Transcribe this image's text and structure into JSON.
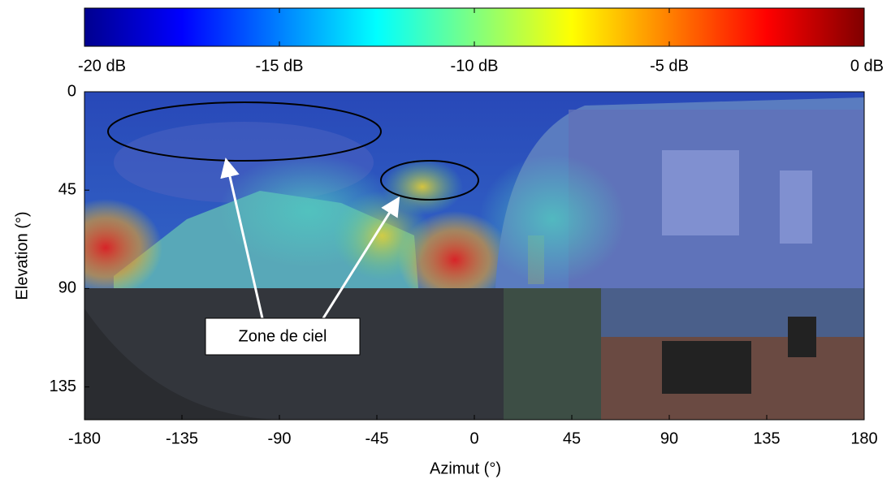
{
  "chart_data": {
    "type": "heatmap",
    "xlabel": "Azimut (°)",
    "ylabel": "Elevation (°)",
    "xlim": [
      -180,
      180
    ],
    "xticks": [
      -180,
      -135,
      -90,
      -45,
      0,
      45,
      90,
      135,
      180
    ],
    "ylim": [
      0,
      150
    ],
    "yticks": [
      0,
      45,
      90,
      135
    ],
    "y_reversed": true,
    "colorbar": {
      "colormap": "jet",
      "clim": [
        -20,
        0
      ],
      "ticks": [
        {
          "value": -20,
          "label": "-20 dB"
        },
        {
          "value": -15,
          "label": "-15 dB"
        },
        {
          "value": -10,
          "label": "-10 dB"
        },
        {
          "value": -5,
          "label": "-5 dB"
        },
        {
          "value": 0,
          "label": "0 dB"
        }
      ]
    },
    "annotation": "Zone de ciel"
  }
}
